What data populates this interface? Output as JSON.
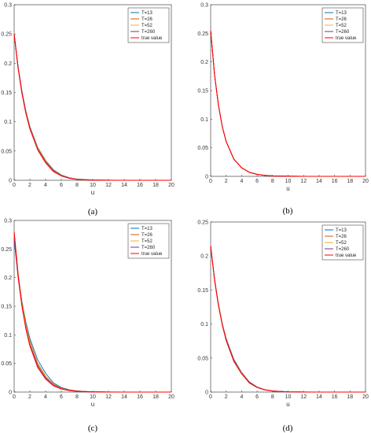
{
  "chart_data": [
    {
      "type": "line",
      "caption": "(a)",
      "xlabel": "u",
      "xlim": [
        0,
        20
      ],
      "ylim": [
        0,
        0.3
      ],
      "xticks": [
        0,
        2,
        4,
        6,
        8,
        10,
        12,
        14,
        16,
        18,
        20
      ],
      "yticks": [
        0,
        0.05,
        0.1,
        0.15,
        0.2,
        0.25,
        0.3
      ],
      "ytick_labels": [
        "0",
        "0.05",
        "0.1",
        "0.15",
        "0.2",
        "0.25",
        "0.3"
      ],
      "legend_position": "top-right",
      "x": [
        0,
        0.5,
        1,
        1.5,
        2,
        3,
        4,
        5,
        6,
        7,
        8,
        10,
        12,
        14,
        16,
        18,
        20
      ],
      "series": [
        {
          "name": "T=13",
          "color": "#0072BD",
          "values": [
            0.25,
            0.195,
            0.152,
            0.118,
            0.092,
            0.056,
            0.034,
            0.018,
            0.009,
            0.0045,
            0.002,
            0.0005,
            0.0001,
            0,
            0,
            0,
            0
          ]
        },
        {
          "name": "T=26",
          "color": "#D95319",
          "values": [
            0.25,
            0.194,
            0.151,
            0.117,
            0.091,
            0.055,
            0.033,
            0.017,
            0.0085,
            0.004,
            0.0018,
            0.0004,
            0.0001,
            0,
            0,
            0,
            0
          ]
        },
        {
          "name": "T=52",
          "color": "#EDB120",
          "values": [
            0.25,
            0.193,
            0.15,
            0.116,
            0.09,
            0.054,
            0.032,
            0.016,
            0.008,
            0.0038,
            0.0017,
            0.0004,
            0.0001,
            0,
            0,
            0,
            0
          ]
        },
        {
          "name": "T=260",
          "color": "#7E2F8E",
          "values": [
            0.25,
            0.193,
            0.149,
            0.115,
            0.089,
            0.053,
            0.031,
            0.0155,
            0.0078,
            0.0036,
            0.0016,
            0.0003,
            0.0001,
            0,
            0,
            0,
            0
          ]
        },
        {
          "name": "true value",
          "color": "#FF0000",
          "values": [
            0.25,
            0.192,
            0.148,
            0.114,
            0.088,
            0.052,
            0.03,
            0.015,
            0.0075,
            0.0035,
            0.0015,
            0.0003,
            0.0001,
            0,
            0,
            0,
            0
          ]
        }
      ]
    },
    {
      "type": "line",
      "caption": "(b)",
      "xlabel": "u",
      "xlim": [
        0,
        20
      ],
      "ylim": [
        0,
        0.3
      ],
      "xticks": [
        0,
        2,
        4,
        6,
        8,
        10,
        12,
        14,
        16,
        18,
        20
      ],
      "yticks": [
        0,
        0.05,
        0.1,
        0.15,
        0.2,
        0.25,
        0.3
      ],
      "ytick_labels": [
        "0",
        "0.05",
        "0.1",
        "0.15",
        "0.2",
        "0.25",
        "0.3"
      ],
      "legend_position": "top-right",
      "x": [
        0,
        0.5,
        1,
        1.5,
        2,
        3,
        4,
        5,
        6,
        7,
        8,
        10,
        12,
        14,
        16,
        18,
        20
      ],
      "series": [
        {
          "name": "T=13",
          "color": "#0072BD",
          "values": [
            0.255,
            0.178,
            0.125,
            0.087,
            0.061,
            0.03,
            0.015,
            0.007,
            0.0035,
            0.0017,
            0.0008,
            0.0002,
            0,
            0,
            0,
            0,
            0
          ]
        },
        {
          "name": "T=26",
          "color": "#D95319",
          "values": [
            0.255,
            0.178,
            0.125,
            0.087,
            0.061,
            0.03,
            0.015,
            0.007,
            0.0035,
            0.0017,
            0.0008,
            0.0002,
            0,
            0,
            0,
            0,
            0
          ]
        },
        {
          "name": "T=52",
          "color": "#EDB120",
          "values": [
            0.255,
            0.178,
            0.125,
            0.087,
            0.061,
            0.03,
            0.015,
            0.007,
            0.0035,
            0.0017,
            0.0008,
            0.0002,
            0,
            0,
            0,
            0,
            0
          ]
        },
        {
          "name": "T=260",
          "color": "#7E2F8E",
          "values": [
            0.255,
            0.178,
            0.125,
            0.087,
            0.061,
            0.03,
            0.015,
            0.007,
            0.0035,
            0.0017,
            0.0008,
            0.0002,
            0,
            0,
            0,
            0,
            0
          ]
        },
        {
          "name": "true value",
          "color": "#FF0000",
          "values": [
            0.255,
            0.178,
            0.125,
            0.087,
            0.061,
            0.03,
            0.015,
            0.007,
            0.0035,
            0.0017,
            0.0008,
            0.0002,
            0,
            0,
            0,
            0,
            0
          ]
        }
      ]
    },
    {
      "type": "line",
      "caption": "(c)",
      "xlabel": "u",
      "xlim": [
        0,
        20
      ],
      "ylim": [
        0,
        0.3
      ],
      "xticks": [
        0,
        2,
        4,
        6,
        8,
        10,
        12,
        14,
        16,
        18,
        20
      ],
      "yticks": [
        0,
        0.05,
        0.1,
        0.15,
        0.2,
        0.25,
        0.3
      ],
      "ytick_labels": [
        "0",
        "0.05",
        "0.1",
        "0.15",
        "0.2",
        "0.25",
        "0.3"
      ],
      "legend_position": "top-right",
      "x": [
        0,
        0.5,
        1,
        1.5,
        2,
        3,
        4,
        5,
        6,
        7,
        8,
        10,
        12,
        14,
        16,
        18,
        20
      ],
      "series": [
        {
          "name": "T=13",
          "color": "#0072BD",
          "values": [
            0.265,
            0.205,
            0.158,
            0.122,
            0.094,
            0.056,
            0.033,
            0.016,
            0.008,
            0.004,
            0.002,
            0.0004,
            0.0001,
            0,
            0,
            0,
            0
          ]
        },
        {
          "name": "T=26",
          "color": "#D95319",
          "values": [
            0.275,
            0.207,
            0.156,
            0.118,
            0.089,
            0.05,
            0.028,
            0.014,
            0.007,
            0.0035,
            0.0017,
            0.0004,
            0.0001,
            0,
            0,
            0,
            0
          ]
        },
        {
          "name": "T=52",
          "color": "#EDB120",
          "values": [
            0.28,
            0.208,
            0.155,
            0.116,
            0.087,
            0.048,
            0.027,
            0.013,
            0.0065,
            0.0032,
            0.0016,
            0.0004,
            0.0001,
            0,
            0,
            0,
            0
          ]
        },
        {
          "name": "T=260",
          "color": "#7E2F8E",
          "values": [
            0.27,
            0.2,
            0.149,
            0.111,
            0.083,
            0.046,
            0.025,
            0.012,
            0.006,
            0.003,
            0.0015,
            0.0003,
            0.0001,
            0,
            0,
            0,
            0
          ]
        },
        {
          "name": "true value",
          "color": "#FF0000",
          "values": [
            0.28,
            0.205,
            0.15,
            0.11,
            0.081,
            0.043,
            0.023,
            0.011,
            0.0055,
            0.0027,
            0.0013,
            0.0003,
            0.0001,
            0,
            0,
            0,
            0
          ]
        }
      ]
    },
    {
      "type": "line",
      "caption": "(d)",
      "xlabel": "u",
      "xlim": [
        0,
        20
      ],
      "ylim": [
        0,
        0.25
      ],
      "xticks": [
        0,
        2,
        4,
        6,
        8,
        10,
        12,
        14,
        16,
        18,
        20
      ],
      "yticks": [
        0,
        0.05,
        0.1,
        0.15,
        0.2,
        0.25
      ],
      "ytick_labels": [
        "0",
        "0.05",
        "0.1",
        "0.15",
        "0.2",
        "0.25"
      ],
      "legend_position": "top-right",
      "x": [
        0,
        0.5,
        1,
        1.5,
        2,
        3,
        4,
        5,
        6,
        7,
        8,
        10,
        12,
        14,
        16,
        18,
        20
      ],
      "series": [
        {
          "name": "T=13",
          "color": "#0072BD",
          "values": [
            0.215,
            0.167,
            0.13,
            0.101,
            0.079,
            0.048,
            0.029,
            0.015,
            0.0075,
            0.0036,
            0.0017,
            0.0004,
            0.0001,
            0,
            0,
            0,
            0
          ]
        },
        {
          "name": "T=26",
          "color": "#D95319",
          "values": [
            0.215,
            0.166,
            0.129,
            0.1,
            0.078,
            0.047,
            0.028,
            0.0145,
            0.0072,
            0.0034,
            0.0016,
            0.0004,
            0.0001,
            0,
            0,
            0,
            0
          ]
        },
        {
          "name": "T=52",
          "color": "#EDB120",
          "values": [
            0.215,
            0.166,
            0.129,
            0.1,
            0.077,
            0.046,
            0.028,
            0.014,
            0.007,
            0.0033,
            0.0015,
            0.0003,
            0.0001,
            0,
            0,
            0,
            0
          ]
        },
        {
          "name": "T=260",
          "color": "#7E2F8E",
          "values": [
            0.215,
            0.166,
            0.128,
            0.099,
            0.077,
            0.046,
            0.027,
            0.014,
            0.007,
            0.0033,
            0.0015,
            0.0003,
            0.0001,
            0,
            0,
            0,
            0
          ]
        },
        {
          "name": "true value",
          "color": "#FF0000",
          "values": [
            0.215,
            0.165,
            0.128,
            0.099,
            0.076,
            0.045,
            0.027,
            0.0135,
            0.0068,
            0.0032,
            0.0015,
            0.0003,
            0.0001,
            0,
            0,
            0,
            0
          ]
        }
      ]
    }
  ]
}
